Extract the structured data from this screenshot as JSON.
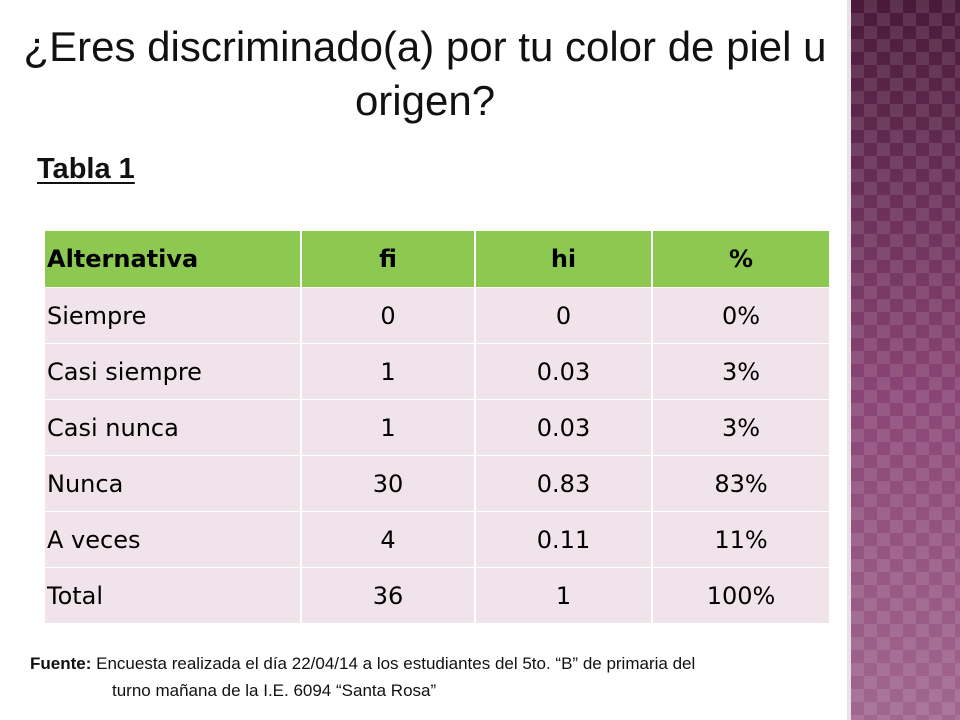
{
  "title": "¿Eres discriminado(a) por tu color de piel u origen?",
  "table_label": "Tabla 1",
  "table": {
    "headers": [
      "Alternativa",
      "fi",
      "hi",
      "%"
    ],
    "rows": [
      [
        "Siempre",
        "0",
        "0",
        "0%"
      ],
      [
        "Casi siempre",
        "1",
        "0.03",
        "3%"
      ],
      [
        "Casi nunca",
        "1",
        "0.03",
        "3%"
      ],
      [
        "Nunca",
        "30",
        "0.83",
        "83%"
      ],
      [
        "A veces",
        "4",
        "0.11",
        "11%"
      ],
      [
        "Total",
        "36",
        "1",
        "100%"
      ]
    ]
  },
  "source": {
    "label": "Fuente:",
    "line1": " Encuesta realizada el día 22/04/14 a los estudiantes del 5to. “B”  de primaria del",
    "line2": "turno mañana de la I.E. 6094 “Santa Rosa”"
  },
  "colors": {
    "header_bg": "#8dc850",
    "row_bg": "#f0e4ea",
    "side_band": "#7a3a66"
  }
}
